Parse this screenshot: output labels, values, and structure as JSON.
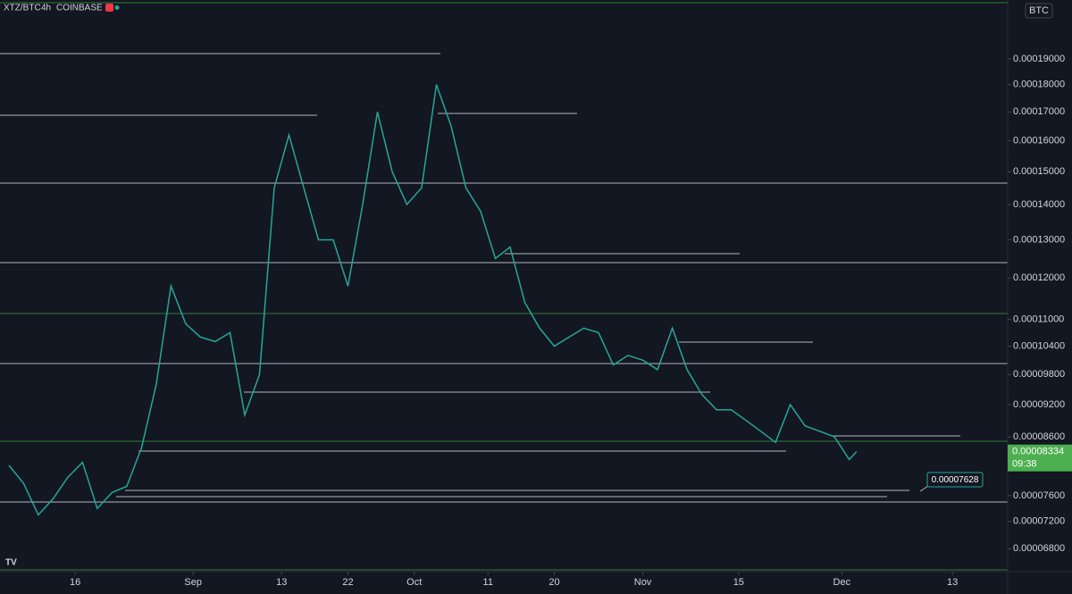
{
  "chart_data": {
    "type": "line",
    "symbol": "XTZ/BTC",
    "interval": "4h",
    "exchange": "COINBASE",
    "currency": "BTC",
    "log_scale": true,
    "color": "#26a69a",
    "x": [
      -9,
      -7,
      -5,
      -3,
      -1,
      1,
      3,
      5,
      7,
      9,
      11,
      13,
      15,
      17,
      19,
      21,
      23,
      25,
      27,
      29,
      31,
      33,
      35,
      37,
      39,
      41,
      43,
      45,
      47,
      49,
      51,
      53,
      55,
      57,
      59,
      61,
      63,
      65,
      67,
      69,
      71,
      73,
      75,
      77,
      79,
      81,
      83,
      85,
      87,
      89,
      91,
      93,
      95,
      97,
      99,
      101,
      103,
      105,
      106
    ],
    "values": [
      8.1e-05,
      7.8e-05,
      7.3e-05,
      7.55e-05,
      7.9e-05,
      8.15e-05,
      7.4e-05,
      7.65e-05,
      7.75e-05,
      8.4e-05,
      9.6e-05,
      0.000118,
      0.000109,
      0.000106,
      0.000105,
      0.000107,
      9e-05,
      9.8e-05,
      0.000145,
      0.000162,
      0.000145,
      0.00013,
      0.00013,
      0.000118,
      0.00014,
      0.00017,
      0.00015,
      0.00014,
      0.000145,
      0.00018,
      0.000165,
      0.000145,
      0.000138,
      0.000125,
      0.000128,
      0.000114,
      0.000108,
      0.000104,
      0.000106,
      0.000108,
      0.000107,
      0.0001,
      0.000102,
      0.000101,
      9.9e-05,
      0.000108,
      9.9e-05,
      9.4e-05,
      9.1e-05,
      9.1e-05,
      8.9e-05,
      8.7e-05,
      8.5e-05,
      9.2e-05,
      8.8e-05,
      8.7e-05,
      8.6e-05,
      8.2e-05,
      8.334e-05
    ],
    "last_label": "0.00008334",
    "countdown": "09:38",
    "callout": "0.00007628",
    "xlim": [
      -10.2,
      126.5
    ],
    "xticks": [
      {
        "value": 0,
        "label": "16"
      },
      {
        "value": 16,
        "label": "Sep"
      },
      {
        "value": 28,
        "label": "13"
      },
      {
        "value": 37,
        "label": "22"
      },
      {
        "value": 46,
        "label": "Oct"
      },
      {
        "value": 56,
        "label": "11"
      },
      {
        "value": 65,
        "label": "20"
      },
      {
        "value": 77,
        "label": "Nov"
      },
      {
        "value": 90,
        "label": "15"
      },
      {
        "value": 104,
        "label": "Dec"
      },
      {
        "value": 119,
        "label": "13"
      }
    ],
    "ylim": [
      6.48e-05,
      0.000215
    ],
    "yticks": [
      {
        "value": 0.00019,
        "label": "0.00019000"
      },
      {
        "value": 0.00018,
        "label": "0.00018000"
      },
      {
        "value": 0.00017,
        "label": "0.00017000"
      },
      {
        "value": 0.00016,
        "label": "0.00016000"
      },
      {
        "value": 0.00015,
        "label": "0.00015000"
      },
      {
        "value": 0.00014,
        "label": "0.00014000"
      },
      {
        "value": 0.00013,
        "label": "0.00013000"
      },
      {
        "value": 0.00012,
        "label": "0.00012000"
      },
      {
        "value": 0.00011,
        "label": "0.00011000"
      },
      {
        "value": 0.000104,
        "label": "0.00010400"
      },
      {
        "value": 9.8e-05,
        "label": "0.00009800"
      },
      {
        "value": 9.2e-05,
        "label": "0.00009200"
      },
      {
        "value": 8.6e-05,
        "label": "0.00008600"
      },
      {
        "value": 7.6e-05,
        "label": "0.00007600"
      },
      {
        "value": 7.2e-05,
        "label": "0.00007200"
      },
      {
        "value": 6.8e-05,
        "label": "0.00006800"
      }
    ]
  }
}
